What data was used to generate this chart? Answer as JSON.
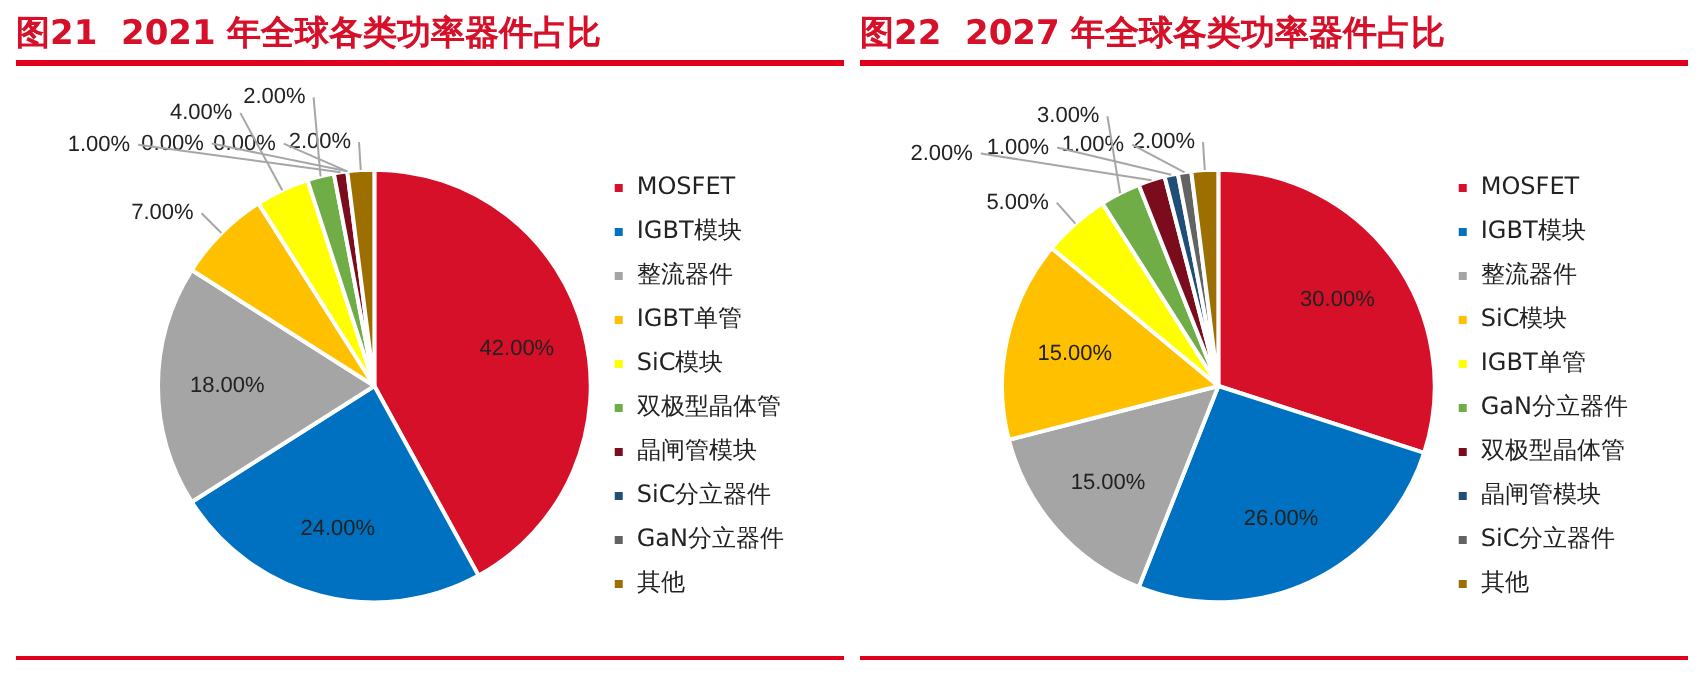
{
  "chart_data": [
    {
      "type": "pie",
      "title": "图21  2021 年全球各类功率器件占比",
      "categories": [
        "MOSFET",
        "IGBT模块",
        "整流器件",
        "IGBT单管",
        "SiC模块",
        "双极型晶体管",
        "晶闸管模块",
        "SiC分立器件",
        "GaN分立器件",
        "其他"
      ],
      "values": [
        42,
        24,
        18,
        7,
        4,
        2,
        1,
        0,
        0,
        2
      ],
      "colors": [
        "#d7102a",
        "#0070c0",
        "#a5a5a5",
        "#ffc000",
        "#ffff00",
        "#70ad47",
        "#7b0c1d",
        "#1f4e79",
        "#636363",
        "#9c6f00"
      ],
      "value_labels": [
        "42.00%",
        "24.00%",
        "18.00%",
        "7.00%",
        "4.00%",
        "2.00%",
        "1.00%",
        "0.00%",
        "0.00%",
        "2.00%"
      ],
      "legend": "right"
    },
    {
      "type": "pie",
      "title": "图22  2027 年全球各类功率器件占比",
      "categories": [
        "MOSFET",
        "IGBT模块",
        "整流器件",
        "SiC模块",
        "IGBT单管",
        "GaN分立器件",
        "双极型晶体管",
        "晶闸管模块",
        "SiC分立器件",
        "其他"
      ],
      "values": [
        30,
        26,
        15,
        15,
        5,
        3,
        2,
        1,
        1,
        2
      ],
      "colors": [
        "#d7102a",
        "#0070c0",
        "#a5a5a5",
        "#ffc000",
        "#ffff00",
        "#70ad47",
        "#7b0c1d",
        "#1f4e79",
        "#636363",
        "#9c6f00"
      ],
      "value_labels": [
        "30.00%",
        "26.00%",
        "15.00%",
        "15.00%",
        "5.00%",
        "3.00%",
        "2.00%",
        "1.00%",
        "1.00%",
        "2.00%"
      ],
      "legend": "right"
    }
  ]
}
